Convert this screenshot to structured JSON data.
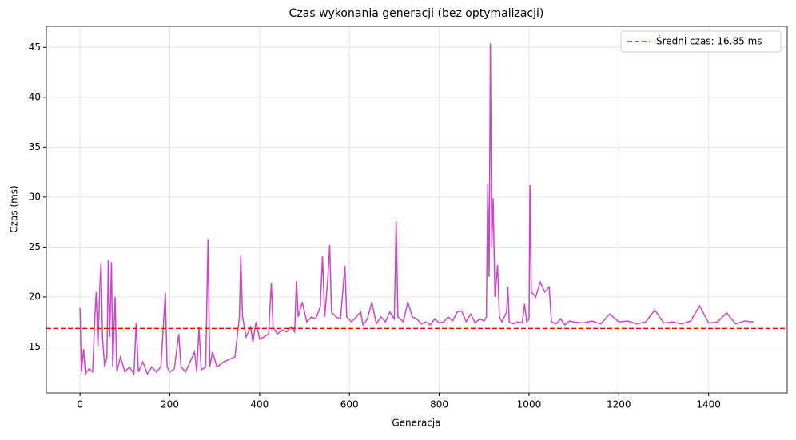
{
  "chart_data": {
    "type": "line",
    "title": "Czas wykonania generacji (bez optymalizacji)",
    "x_label": "Generacja",
    "y_label": "Czas (ms)",
    "x": [
      0,
      3,
      8,
      12,
      20,
      28,
      33,
      36,
      40,
      44,
      47,
      50,
      55,
      60,
      63,
      66,
      70,
      73,
      78,
      82,
      90,
      100,
      110,
      120,
      125,
      130,
      140,
      150,
      160,
      170,
      180,
      190,
      194,
      200,
      210,
      220,
      225,
      235,
      245,
      255,
      260,
      265,
      270,
      280,
      285,
      289,
      295,
      305,
      320,
      335,
      345,
      355,
      358,
      362,
      370,
      380,
      385,
      392,
      400,
      410,
      420,
      426,
      430,
      440,
      450,
      460,
      470,
      478,
      482,
      486,
      495,
      505,
      515,
      525,
      535,
      540,
      545,
      552,
      556,
      560,
      570,
      580,
      590,
      594,
      605,
      615,
      625,
      630,
      640,
      650,
      660,
      670,
      680,
      690,
      700,
      704,
      708,
      720,
      730,
      740,
      750,
      760,
      770,
      780,
      790,
      800,
      810,
      820,
      830,
      840,
      850,
      860,
      870,
      880,
      890,
      900,
      905,
      908,
      911,
      914,
      917,
      920,
      924,
      930,
      934,
      940,
      950,
      953,
      956,
      965,
      975,
      985,
      990,
      995,
      1000,
      1002,
      1005,
      1015,
      1025,
      1035,
      1045,
      1050,
      1060,
      1070,
      1080,
      1090,
      1100,
      1120,
      1140,
      1160,
      1180,
      1200,
      1220,
      1240,
      1260,
      1280,
      1300,
      1320,
      1340,
      1360,
      1380,
      1400,
      1420,
      1440,
      1460,
      1480,
      1500
    ],
    "series": [
      {
        "name": "Czas",
        "color": "#cc44cc",
        "values": [
          18.9,
          12.5,
          14.8,
          12.3,
          12.8,
          12.5,
          18,
          20.5,
          15,
          21,
          23.5,
          16,
          13,
          14,
          23.7,
          16,
          23.5,
          13,
          20,
          12.5,
          14,
          12.5,
          13,
          12.3,
          17.4,
          12.5,
          13.5,
          12.3,
          13,
          12.5,
          13,
          20.4,
          13,
          12.5,
          12.8,
          16.3,
          13,
          12.5,
          13.5,
          14.5,
          12.5,
          17,
          12.7,
          13,
          25.8,
          13,
          14.5,
          13,
          13.5,
          13.8,
          14,
          18,
          24.2,
          18,
          16,
          17,
          15.5,
          17.5,
          15.8,
          16,
          16.3,
          21.4,
          17,
          16.3,
          16.7,
          16.5,
          17,
          16.5,
          21.6,
          18,
          19.5,
          17.5,
          18,
          17.8,
          19,
          24.1,
          18,
          22,
          25.2,
          18.5,
          18,
          17.8,
          23.1,
          18,
          17.5,
          18,
          18.5,
          17.2,
          17.8,
          19.5,
          17.3,
          18,
          17.5,
          18.5,
          17.8,
          27.6,
          18,
          17.5,
          19.5,
          18,
          17.8,
          17.3,
          17.5,
          17.2,
          17.8,
          17.4,
          17.5,
          18,
          17.6,
          18.5,
          18.6,
          17.5,
          18.3,
          17.4,
          17.8,
          17.6,
          18,
          31.3,
          22,
          45.4,
          25,
          29.9,
          20,
          23.2,
          18,
          17.5,
          18.5,
          21,
          17.5,
          17.3,
          17.5,
          17.4,
          19.3,
          17.5,
          17.8,
          31.2,
          20.5,
          20,
          21.5,
          20.5,
          21,
          17.5,
          17.3,
          17.8,
          17.2,
          17.6,
          17.5,
          17.4,
          17.6,
          17.3,
          18.3,
          17.5,
          17.6,
          17.3,
          17.5,
          18.7,
          17.4,
          17.5,
          17.3,
          17.6,
          19.1,
          17.4,
          17.5,
          18.4,
          17.3,
          17.6,
          17.5
        ]
      }
    ],
    "mean_line": {
      "value": 16.85,
      "label": "Średni czas: 16.85 ms",
      "color": "#ff0000"
    },
    "legend": "upper right",
    "xlim": [
      -75,
      1575
    ],
    "xticks": [
      0,
      200,
      400,
      600,
      800,
      1000,
      1200,
      1400
    ],
    "ylim": [
      10.4,
      47.1
    ],
    "yticks": [
      15,
      20,
      25,
      30,
      35,
      40,
      45
    ],
    "grid": true
  }
}
